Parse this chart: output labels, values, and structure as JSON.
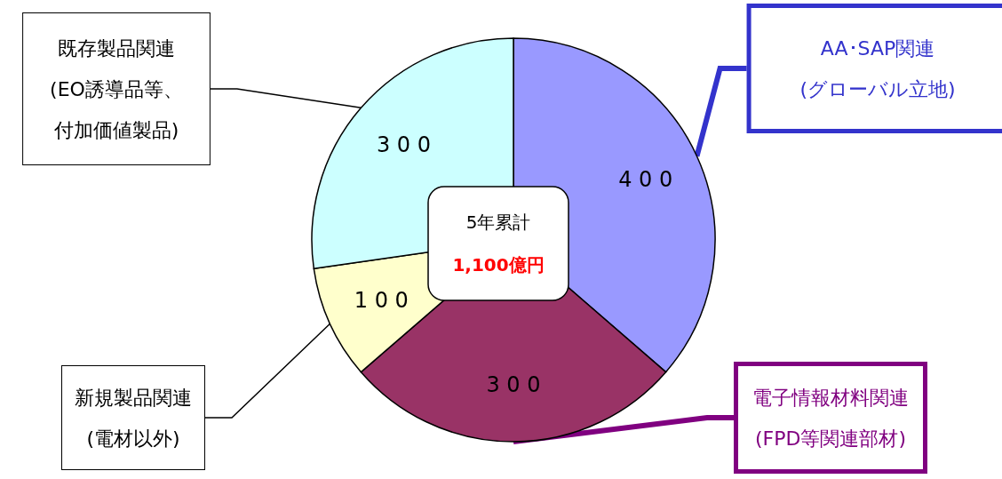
{
  "chart_data": {
    "type": "pie",
    "categories": [
      "AA･SAP関連(グローバル立地)",
      "電子情報材料関連(FPD等関連部材)",
      "新規製品関連(電材以外)",
      "既存製品関連(EO誘導品等、付加価値製品)"
    ],
    "values": [
      400,
      300,
      100,
      300
    ],
    "colors": [
      "#9999ff",
      "#993366",
      "#ffffcc",
      "#ccffff"
    ],
    "data_labels": true,
    "annotations": [
      "5年累計",
      "1,100億円"
    ]
  }
}
